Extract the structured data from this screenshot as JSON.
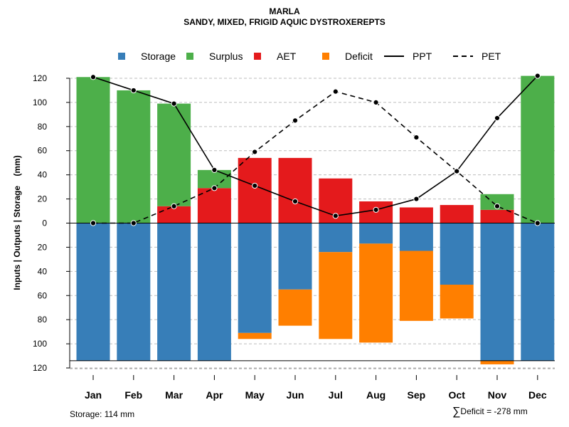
{
  "chart_data": {
    "type": "bar",
    "title": "MARLA",
    "subtitle": "SANDY, MIXED, FRIGID AQUIC DYSTROXEREPTS",
    "ylabel": "Inputs | Outputs | Storage    (mm)",
    "categories": [
      "Jan",
      "Feb",
      "Mar",
      "Apr",
      "May",
      "Jun",
      "Jul",
      "Aug",
      "Sep",
      "Oct",
      "Nov",
      "Dec"
    ],
    "ylim": [
      -120,
      130
    ],
    "yticks": [
      120,
      100,
      80,
      60,
      40,
      20,
      0,
      -20,
      -40,
      -60,
      -80,
      -100,
      -120
    ],
    "ytick_labels": [
      "120",
      "100",
      "80",
      "60",
      "40",
      "20",
      "0",
      "20",
      "40",
      "60",
      "80",
      "100",
      "120"
    ],
    "grid": true,
    "legend": [
      "Storage",
      "Surplus",
      "AET",
      "Deficit",
      "PPT",
      "PET"
    ],
    "colors": {
      "Storage": "#377eb8",
      "Surplus": "#4daf4a",
      "AET": "#e41a1c",
      "Deficit": "#ff7f00"
    },
    "series": [
      {
        "name": "AET",
        "values": [
          0,
          0,
          14,
          29,
          54,
          54,
          37,
          18,
          13,
          15,
          11,
          0
        ]
      },
      {
        "name": "Surplus",
        "values": [
          121,
          110,
          85,
          15,
          0,
          0,
          0,
          0,
          0,
          0,
          13,
          122
        ]
      },
      {
        "name": "Storage",
        "values": [
          114,
          114,
          114,
          114,
          91,
          55,
          24,
          17,
          23,
          51,
          114,
          114
        ]
      },
      {
        "name": "Deficit",
        "values": [
          0,
          0,
          0,
          0,
          5,
          30,
          72,
          82,
          58,
          28,
          3,
          0
        ]
      },
      {
        "name": "PPT",
        "values": [
          121,
          110,
          99,
          44,
          31,
          18,
          6,
          11,
          20,
          43,
          87,
          122
        ]
      },
      {
        "name": "PET",
        "values": [
          0,
          0,
          14,
          29,
          59,
          85,
          109,
          100,
          71,
          43,
          14,
          0
        ]
      }
    ],
    "storage_capacity": 114,
    "annotations": {
      "storage_note": "Storage: 114 mm",
      "deficit_note": "Deficit = -278 mm",
      "deficit_symbol": "∑"
    }
  }
}
